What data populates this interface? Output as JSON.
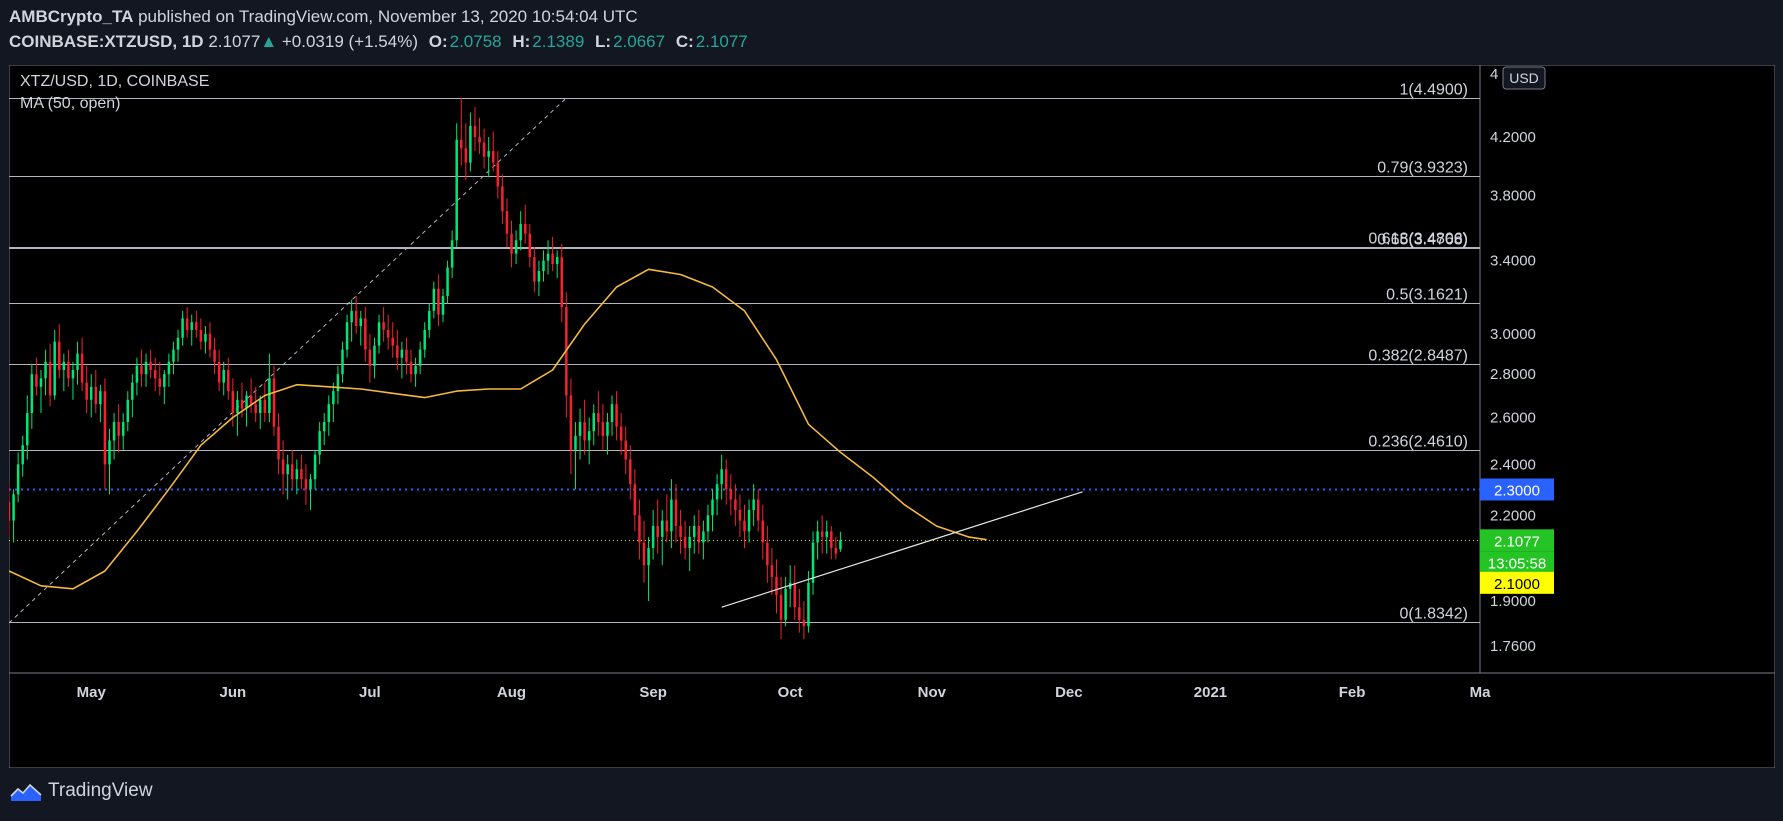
{
  "header": {
    "author": "AMBCrypto_TA",
    "published_text": "published on TradingView.com, November 13, 2020 10:54:04 UTC",
    "symbol": "COINBASE:XTZUSD, 1D",
    "last": "2.1077",
    "change_arrow": "▲",
    "change": "+0.0319 (+1.54%)",
    "o_label": "O:",
    "o": "2.0758",
    "h_label": "H:",
    "h": "2.1389",
    "l_label": "L:",
    "l": "2.0667",
    "c_label": "C:",
    "c": "2.1077"
  },
  "legend": {
    "title": "XTZ/USD, 1D, COINBASE",
    "indicator": "MA (50, open)"
  },
  "footer": {
    "brand": "TradingView"
  },
  "colors": {
    "background": "#000000",
    "page": "#131722",
    "up": "#00e676",
    "down": "#f5222d",
    "ma": "#f5b841",
    "hline": "#2962ff",
    "price_label": "#25c425",
    "price_label_alt": "#ffff00"
  },
  "chart_data": {
    "type": "candlestick",
    "title": "XTZ/USD, 1D, COINBASE",
    "currency_label": "USD",
    "y_scale": "log",
    "ylim": [
      1.68,
      4.75
    ],
    "y_ticks": [
      {
        "v": 4.2,
        "label": "4.2000"
      },
      {
        "v": 3.8,
        "label": "3.8000"
      },
      {
        "v": 3.4,
        "label": "3.4000"
      },
      {
        "v": 3.0,
        "label": "3.0000"
      },
      {
        "v": 2.8,
        "label": "2.8000"
      },
      {
        "v": 2.6,
        "label": "2.6000"
      },
      {
        "v": 2.4,
        "label": "2.4000"
      },
      {
        "v": 2.2,
        "label": "2.2000"
      },
      {
        "v": 1.9,
        "label": "1.9000"
      },
      {
        "v": 1.76,
        "label": "1.7600"
      }
    ],
    "y_top_partial_label": "4",
    "x_range": [
      "2020-04-13",
      "2021-03-01"
    ],
    "x_ticks": [
      {
        "date": "2020-05-01",
        "label": "May"
      },
      {
        "date": "2020-06-01",
        "label": "Jun"
      },
      {
        "date": "2020-07-01",
        "label": "Jul"
      },
      {
        "date": "2020-08-01",
        "label": "Aug"
      },
      {
        "date": "2020-09-01",
        "label": "Sep"
      },
      {
        "date": "2020-10-01",
        "label": "Oct"
      },
      {
        "date": "2020-11-01",
        "label": "Nov"
      },
      {
        "date": "2020-12-01",
        "label": "Dec"
      },
      {
        "date": "2021-01-01",
        "label": "2021"
      },
      {
        "date": "2021-02-01",
        "label": "Feb"
      },
      {
        "date": "2021-03-01",
        "label": "Ma"
      }
    ],
    "fib_levels": [
      {
        "v": 4.49,
        "label": "1(4.4900)"
      },
      {
        "v": 3.9323,
        "label": "0.79(3.9323)"
      },
      {
        "v": 3.4806,
        "label": "0.618(3.4806)"
      },
      {
        "v": 3.4768,
        "label": "0.65(3.4768)"
      },
      {
        "v": 3.1621,
        "label": "0.5(3.1621)"
      },
      {
        "v": 2.8487,
        "label": "0.382(2.8487)"
      },
      {
        "v": 2.461,
        "label": "0.236(2.4610)"
      },
      {
        "v": 1.8342,
        "label": "0(1.8342)"
      }
    ],
    "fib_diagonal": [
      {
        "date": "2020-04-13",
        "v": 1.83
      },
      {
        "date": "2020-08-13",
        "v": 4.49
      }
    ],
    "horizontal_line": {
      "v": 2.3,
      "label": "2.3000"
    },
    "last_price_line": {
      "v": 2.1077
    },
    "price_labels": [
      {
        "v": 2.1077,
        "label": "2.1077",
        "color": "#25c425",
        "text_color": "#ffffff"
      },
      {
        "v": 2.03,
        "label": "13:05:58",
        "color": "#25c425",
        "text_color": "#ffffff"
      },
      {
        "v": 1.96,
        "label": "2.1000",
        "color": "#ffff00",
        "text_color": "#000000"
      }
    ],
    "trendline": [
      {
        "date": "2020-09-16",
        "v": 1.88
      },
      {
        "date": "2020-12-04",
        "v": 2.29
      }
    ],
    "candles_start": "2020-04-13",
    "ohlc": [
      [
        2.25,
        2.32,
        2.12,
        2.18
      ],
      [
        2.18,
        2.3,
        2.1,
        2.28
      ],
      [
        2.28,
        2.45,
        2.25,
        2.4
      ],
      [
        2.4,
        2.52,
        2.35,
        2.48
      ],
      [
        2.48,
        2.7,
        2.42,
        2.62
      ],
      [
        2.62,
        2.85,
        2.55,
        2.8
      ],
      [
        2.8,
        2.88,
        2.7,
        2.74
      ],
      [
        2.74,
        2.82,
        2.62,
        2.78
      ],
      [
        2.78,
        2.92,
        2.7,
        2.86
      ],
      [
        2.86,
        2.95,
        2.65,
        2.7
      ],
      [
        2.7,
        3.02,
        2.68,
        2.96
      ],
      [
        2.96,
        3.05,
        2.78,
        2.82
      ],
      [
        2.82,
        2.9,
        2.72,
        2.86
      ],
      [
        2.86,
        2.92,
        2.74,
        2.78
      ],
      [
        2.78,
        2.86,
        2.68,
        2.82
      ],
      [
        2.82,
        2.96,
        2.75,
        2.9
      ],
      [
        2.9,
        2.98,
        2.72,
        2.76
      ],
      [
        2.76,
        2.84,
        2.62,
        2.68
      ],
      [
        2.68,
        2.8,
        2.6,
        2.74
      ],
      [
        2.74,
        2.82,
        2.62,
        2.66
      ],
      [
        2.66,
        2.75,
        2.58,
        2.72
      ],
      [
        2.72,
        2.78,
        2.3,
        2.4
      ],
      [
        2.4,
        2.55,
        2.28,
        2.5
      ],
      [
        2.5,
        2.62,
        2.42,
        2.58
      ],
      [
        2.58,
        2.66,
        2.45,
        2.52
      ],
      [
        2.52,
        2.62,
        2.46,
        2.58
      ],
      [
        2.58,
        2.72,
        2.54,
        2.68
      ],
      [
        2.68,
        2.8,
        2.6,
        2.76
      ],
      [
        2.76,
        2.88,
        2.7,
        2.84
      ],
      [
        2.84,
        2.92,
        2.74,
        2.8
      ],
      [
        2.8,
        2.9,
        2.74,
        2.86
      ],
      [
        2.86,
        2.92,
        2.78,
        2.82
      ],
      [
        2.82,
        2.88,
        2.72,
        2.78
      ],
      [
        2.78,
        2.86,
        2.7,
        2.74
      ],
      [
        2.74,
        2.82,
        2.66,
        2.8
      ],
      [
        2.8,
        2.9,
        2.74,
        2.86
      ],
      [
        2.86,
        2.96,
        2.8,
        2.92
      ],
      [
        2.92,
        3.02,
        2.86,
        2.98
      ],
      [
        2.98,
        3.12,
        2.94,
        3.08
      ],
      [
        3.08,
        3.14,
        2.98,
        3.02
      ],
      [
        3.02,
        3.1,
        2.94,
        3.06
      ],
      [
        3.06,
        3.12,
        2.98,
        3.02
      ],
      [
        3.02,
        3.08,
        2.92,
        2.96
      ],
      [
        2.96,
        3.04,
        2.9,
        3.0
      ],
      [
        3.0,
        3.06,
        2.88,
        2.92
      ],
      [
        2.92,
        2.98,
        2.8,
        2.86
      ],
      [
        2.86,
        2.92,
        2.72,
        2.76
      ],
      [
        2.76,
        2.86,
        2.7,
        2.82
      ],
      [
        2.82,
        2.88,
        2.68,
        2.72
      ],
      [
        2.72,
        2.78,
        2.56,
        2.62
      ],
      [
        2.62,
        2.72,
        2.52,
        2.68
      ],
      [
        2.68,
        2.76,
        2.6,
        2.64
      ],
      [
        2.64,
        2.72,
        2.56,
        2.7
      ],
      [
        2.7,
        2.78,
        2.62,
        2.66
      ],
      [
        2.66,
        2.74,
        2.58,
        2.62
      ],
      [
        2.62,
        2.7,
        2.55,
        2.68
      ],
      [
        2.68,
        2.76,
        2.58,
        2.62
      ],
      [
        2.62,
        2.9,
        2.58,
        2.78
      ],
      [
        2.78,
        2.84,
        2.52,
        2.56
      ],
      [
        2.56,
        2.62,
        2.36,
        2.42
      ],
      [
        2.42,
        2.5,
        2.28,
        2.36
      ],
      [
        2.36,
        2.44,
        2.26,
        2.4
      ],
      [
        2.4,
        2.46,
        2.3,
        2.34
      ],
      [
        2.34,
        2.42,
        2.28,
        2.38
      ],
      [
        2.38,
        2.44,
        2.3,
        2.34
      ],
      [
        2.34,
        2.4,
        2.24,
        2.3
      ],
      [
        2.3,
        2.36,
        2.22,
        2.34
      ],
      [
        2.34,
        2.46,
        2.3,
        2.44
      ],
      [
        2.44,
        2.58,
        2.4,
        2.54
      ],
      [
        2.54,
        2.62,
        2.48,
        2.58
      ],
      [
        2.58,
        2.7,
        2.52,
        2.66
      ],
      [
        2.66,
        2.76,
        2.58,
        2.72
      ],
      [
        2.72,
        2.84,
        2.66,
        2.8
      ],
      [
        2.8,
        2.96,
        2.76,
        2.92
      ],
      [
        2.92,
        3.1,
        2.88,
        3.06
      ],
      [
        3.06,
        3.18,
        2.96,
        3.12
      ],
      [
        3.12,
        3.2,
        3.0,
        3.04
      ],
      [
        3.04,
        3.12,
        2.94,
        3.08
      ],
      [
        3.08,
        3.14,
        2.86,
        2.92
      ],
      [
        2.92,
        3.0,
        2.76,
        2.84
      ],
      [
        2.84,
        2.98,
        2.78,
        2.94
      ],
      [
        2.94,
        3.1,
        2.9,
        3.06
      ],
      [
        3.06,
        3.14,
        2.96,
        3.02
      ],
      [
        3.02,
        3.1,
        2.92,
        2.98
      ],
      [
        2.98,
        3.06,
        2.88,
        2.94
      ],
      [
        2.94,
        3.02,
        2.82,
        2.88
      ],
      [
        2.88,
        2.96,
        2.78,
        2.92
      ],
      [
        2.92,
        2.98,
        2.8,
        2.86
      ],
      [
        2.86,
        2.92,
        2.76,
        2.8
      ],
      [
        2.8,
        2.88,
        2.74,
        2.84
      ],
      [
        2.84,
        2.96,
        2.8,
        2.92
      ],
      [
        2.92,
        3.06,
        2.88,
        3.02
      ],
      [
        3.02,
        3.16,
        2.98,
        3.12
      ],
      [
        3.12,
        3.28,
        3.08,
        3.24
      ],
      [
        3.24,
        3.32,
        3.04,
        3.1
      ],
      [
        3.1,
        3.24,
        3.06,
        3.2
      ],
      [
        3.2,
        3.4,
        3.16,
        3.36
      ],
      [
        3.36,
        3.58,
        3.3,
        3.52
      ],
      [
        3.52,
        4.3,
        3.48,
        4.18
      ],
      [
        4.18,
        4.49,
        4.0,
        4.12
      ],
      [
        4.12,
        4.3,
        3.9,
        4.02
      ],
      [
        4.02,
        4.38,
        3.96,
        4.28
      ],
      [
        4.28,
        4.42,
        4.1,
        4.2
      ],
      [
        4.2,
        4.34,
        4.08,
        4.16
      ],
      [
        4.16,
        4.26,
        3.98,
        4.06
      ],
      [
        4.06,
        4.2,
        3.92,
        4.1
      ],
      [
        4.1,
        4.24,
        3.96,
        4.02
      ],
      [
        4.02,
        4.1,
        3.78,
        3.86
      ],
      [
        3.86,
        3.94,
        3.62,
        3.7
      ],
      [
        3.7,
        3.78,
        3.48,
        3.56
      ],
      [
        3.56,
        3.64,
        3.36,
        3.44
      ],
      [
        3.44,
        3.58,
        3.38,
        3.52
      ],
      [
        3.52,
        3.7,
        3.46,
        3.62
      ],
      [
        3.62,
        3.74,
        3.5,
        3.56
      ],
      [
        3.56,
        3.62,
        3.36,
        3.42
      ],
      [
        3.42,
        3.48,
        3.22,
        3.28
      ],
      [
        3.28,
        3.4,
        3.2,
        3.34
      ],
      [
        3.34,
        3.46,
        3.28,
        3.4
      ],
      [
        3.4,
        3.52,
        3.32,
        3.44
      ],
      [
        3.44,
        3.54,
        3.34,
        3.38
      ],
      [
        3.38,
        3.46,
        3.3,
        3.42
      ],
      [
        3.42,
        3.5,
        3.06,
        3.14
      ],
      [
        3.14,
        3.22,
        2.6,
        2.7
      ],
      [
        2.7,
        2.78,
        2.36,
        2.46
      ],
      [
        2.46,
        2.58,
        2.3,
        2.52
      ],
      [
        2.52,
        2.64,
        2.42,
        2.58
      ],
      [
        2.58,
        2.68,
        2.44,
        2.5
      ],
      [
        2.5,
        2.6,
        2.4,
        2.54
      ],
      [
        2.54,
        2.66,
        2.48,
        2.62
      ],
      [
        2.62,
        2.72,
        2.52,
        2.58
      ],
      [
        2.58,
        2.66,
        2.46,
        2.52
      ],
      [
        2.52,
        2.62,
        2.44,
        2.58
      ],
      [
        2.58,
        2.7,
        2.52,
        2.66
      ],
      [
        2.66,
        2.72,
        2.5,
        2.56
      ],
      [
        2.56,
        2.62,
        2.44,
        2.5
      ],
      [
        2.5,
        2.56,
        2.36,
        2.42
      ],
      [
        2.42,
        2.48,
        2.26,
        2.32
      ],
      [
        2.32,
        2.38,
        2.14,
        2.2
      ],
      [
        2.2,
        2.26,
        2.04,
        2.1
      ],
      [
        2.1,
        2.18,
        1.96,
        2.02
      ],
      [
        2.02,
        2.12,
        1.9,
        2.08
      ],
      [
        2.08,
        2.22,
        2.04,
        2.16
      ],
      [
        2.16,
        2.26,
        2.06,
        2.12
      ],
      [
        2.12,
        2.22,
        2.02,
        2.18
      ],
      [
        2.18,
        2.28,
        2.1,
        2.14
      ],
      [
        2.14,
        2.34,
        2.08,
        2.26
      ],
      [
        2.26,
        2.32,
        2.1,
        2.16
      ],
      [
        2.16,
        2.22,
        2.06,
        2.12
      ],
      [
        2.12,
        2.18,
        2.04,
        2.08
      ],
      [
        2.08,
        2.16,
        2.0,
        2.12
      ],
      [
        2.12,
        2.2,
        2.06,
        2.16
      ],
      [
        2.16,
        2.22,
        2.06,
        2.1
      ],
      [
        2.1,
        2.18,
        2.04,
        2.14
      ],
      [
        2.14,
        2.24,
        2.1,
        2.2
      ],
      [
        2.2,
        2.3,
        2.14,
        2.26
      ],
      [
        2.26,
        2.36,
        2.2,
        2.32
      ],
      [
        2.32,
        2.44,
        2.26,
        2.38
      ],
      [
        2.38,
        2.42,
        2.24,
        2.3
      ],
      [
        2.3,
        2.36,
        2.2,
        2.26
      ],
      [
        2.26,
        2.32,
        2.16,
        2.22
      ],
      [
        2.22,
        2.28,
        2.12,
        2.18
      ],
      [
        2.18,
        2.24,
        2.08,
        2.14
      ],
      [
        2.14,
        2.26,
        2.1,
        2.22
      ],
      [
        2.22,
        2.32,
        2.16,
        2.26
      ],
      [
        2.26,
        2.3,
        2.14,
        2.18
      ],
      [
        2.18,
        2.24,
        2.04,
        2.1
      ],
      [
        2.1,
        2.16,
        1.96,
        2.02
      ],
      [
        2.02,
        2.08,
        1.92,
        1.98
      ],
      [
        1.98,
        2.04,
        1.86,
        1.92
      ],
      [
        1.92,
        1.98,
        1.78,
        1.84
      ],
      [
        1.84,
        1.98,
        1.82,
        1.94
      ],
      [
        1.94,
        2.02,
        1.88,
        1.96
      ],
      [
        1.96,
        2.02,
        1.84,
        1.88
      ],
      [
        1.88,
        1.94,
        1.8,
        1.84
      ],
      [
        1.84,
        1.9,
        1.78,
        1.82
      ],
      [
        1.82,
        2.0,
        1.8,
        1.96
      ],
      [
        1.96,
        2.14,
        1.92,
        2.1
      ],
      [
        2.1,
        2.18,
        2.04,
        2.14
      ],
      [
        2.14,
        2.2,
        2.06,
        2.12
      ],
      [
        2.12,
        2.18,
        2.06,
        2.14
      ],
      [
        2.14,
        2.16,
        2.04,
        2.08
      ],
      [
        2.08,
        2.12,
        2.04,
        2.06
      ],
      [
        2.0758,
        2.1389,
        2.0667,
        2.1077
      ]
    ],
    "ma50": [
      {
        "date": "2020-04-13",
        "v": 2.0
      },
      {
        "date": "2020-04-20",
        "v": 1.95
      },
      {
        "date": "2020-04-27",
        "v": 1.94
      },
      {
        "date": "2020-05-04",
        "v": 2.0
      },
      {
        "date": "2020-05-11",
        "v": 2.14
      },
      {
        "date": "2020-05-18",
        "v": 2.3
      },
      {
        "date": "2020-05-25",
        "v": 2.48
      },
      {
        "date": "2020-06-01",
        "v": 2.6
      },
      {
        "date": "2020-06-08",
        "v": 2.7
      },
      {
        "date": "2020-06-15",
        "v": 2.75
      },
      {
        "date": "2020-06-22",
        "v": 2.74
      },
      {
        "date": "2020-06-29",
        "v": 2.73
      },
      {
        "date": "2020-07-06",
        "v": 2.71
      },
      {
        "date": "2020-07-13",
        "v": 2.69
      },
      {
        "date": "2020-07-20",
        "v": 2.72
      },
      {
        "date": "2020-07-27",
        "v": 2.73
      },
      {
        "date": "2020-08-03",
        "v": 2.73
      },
      {
        "date": "2020-08-10",
        "v": 2.82
      },
      {
        "date": "2020-08-17",
        "v": 3.05
      },
      {
        "date": "2020-08-24",
        "v": 3.25
      },
      {
        "date": "2020-08-31",
        "v": 3.35
      },
      {
        "date": "2020-09-07",
        "v": 3.32
      },
      {
        "date": "2020-09-14",
        "v": 3.25
      },
      {
        "date": "2020-09-21",
        "v": 3.12
      },
      {
        "date": "2020-09-28",
        "v": 2.87
      },
      {
        "date": "2020-10-05",
        "v": 2.57
      },
      {
        "date": "2020-10-12",
        "v": 2.45
      },
      {
        "date": "2020-10-19",
        "v": 2.35
      },
      {
        "date": "2020-10-26",
        "v": 2.24
      },
      {
        "date": "2020-11-02",
        "v": 2.16
      },
      {
        "date": "2020-11-09",
        "v": 2.12
      },
      {
        "date": "2020-11-13",
        "v": 2.11
      }
    ]
  }
}
